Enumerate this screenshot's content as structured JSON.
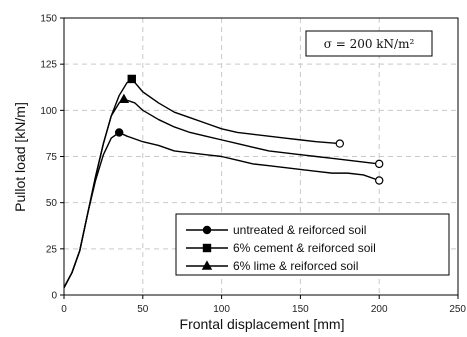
{
  "chart_data": {
    "type": "line",
    "xlabel": "Frontal displacement [mm]",
    "ylabel": "Pullot load [kN/m]",
    "xlim": [
      0,
      250
    ],
    "ylim": [
      0,
      150
    ],
    "xticks": [
      "0",
      "50",
      "100",
      "150",
      "200",
      "250"
    ],
    "yticks": [
      "0",
      "25",
      "50",
      "75",
      "100",
      "125",
      "150"
    ],
    "grid": true,
    "legend_position": "bottom-right",
    "annotation": "σ = 200 kN/m²",
    "series": [
      {
        "name": "untreated & reiforced soil",
        "marker": "circle",
        "x": [
          0,
          5,
          10,
          15,
          20,
          25,
          30,
          35,
          40,
          50,
          60,
          70,
          80,
          90,
          100,
          110,
          120,
          130,
          140,
          150,
          160,
          170,
          180,
          190,
          200
        ],
        "y": [
          4,
          12,
          24,
          44,
          62,
          76,
          85,
          88,
          86,
          83,
          81,
          78,
          77,
          76,
          75,
          73,
          71,
          70,
          69,
          68,
          67,
          66,
          66,
          65,
          62
        ],
        "marked_points": [
          {
            "x": 35,
            "y": 88
          },
          {
            "x": 200,
            "y": 62
          }
        ]
      },
      {
        "name": "6% cement & reiforced soil",
        "marker": "square",
        "x": [
          0,
          5,
          10,
          15,
          20,
          25,
          30,
          35,
          40,
          43,
          50,
          60,
          70,
          80,
          90,
          100,
          110,
          120,
          130,
          140,
          150,
          160,
          175
        ],
        "y": [
          4,
          12,
          24,
          44,
          64,
          82,
          97,
          108,
          115,
          117,
          110,
          104,
          99,
          96,
          93,
          90,
          88,
          87,
          86,
          85,
          84,
          83,
          82
        ],
        "marked_points": [
          {
            "x": 43,
            "y": 117
          },
          {
            "x": 175,
            "y": 82
          }
        ]
      },
      {
        "name": "6% lime & reiforced soil",
        "marker": "triangle",
        "x": [
          0,
          5,
          10,
          15,
          20,
          25,
          30,
          35,
          38,
          45,
          50,
          60,
          70,
          80,
          90,
          100,
          110,
          120,
          130,
          140,
          150,
          160,
          170,
          180,
          190,
          200
        ],
        "y": [
          4,
          12,
          24,
          44,
          64,
          82,
          97,
          104,
          106,
          104,
          100,
          95,
          91,
          88,
          86,
          84,
          82,
          80,
          78,
          77,
          76,
          75,
          74,
          73,
          72,
          71
        ],
        "marked_points": [
          {
            "x": 38,
            "y": 106
          },
          {
            "x": 200,
            "y": 71
          }
        ]
      }
    ]
  }
}
